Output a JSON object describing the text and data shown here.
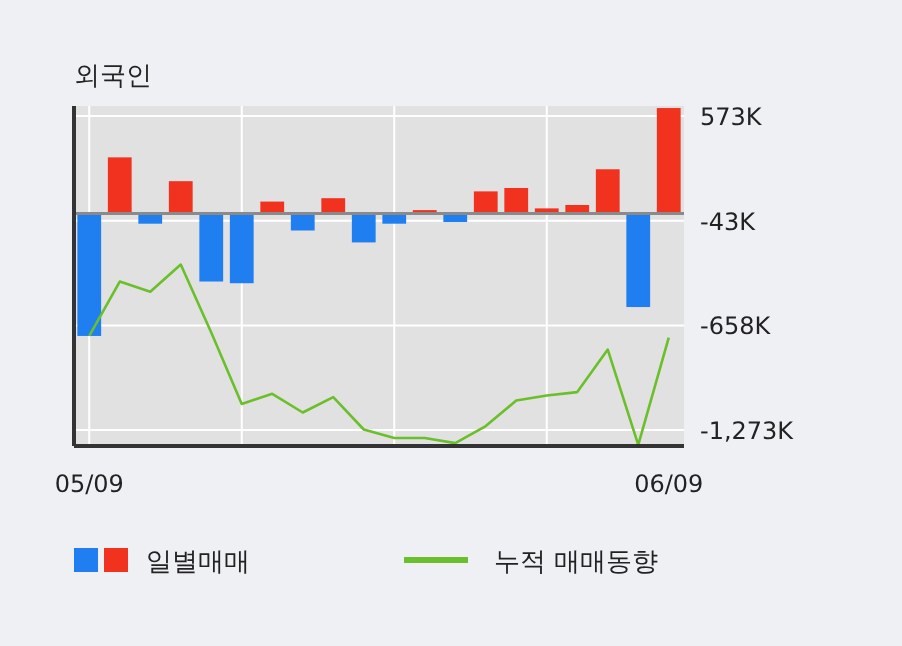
{
  "chart_data": {
    "type": "bar",
    "title": "외국인",
    "categories": [
      "05/09",
      null,
      null,
      null,
      null,
      null,
      null,
      null,
      null,
      null,
      null,
      null,
      null,
      null,
      null,
      null,
      null,
      null,
      null,
      "06/09"
    ],
    "series": [
      {
        "name": "일별매매",
        "colors": [
          "#1f7ff0",
          "#f0321e",
          "#1f7ff0",
          "#f0321e",
          "#1f7ff0",
          "#1f7ff0",
          "#f0321e",
          "#1f7ff0",
          "#f0321e",
          "#1f7ff0",
          "#1f7ff0",
          "#f0321e",
          "#1f7ff0",
          "#f0321e",
          "#f0321e",
          "#f0321e",
          "#f0321e",
          "#f0321e",
          "#1f7ff0",
          "#f0321e"
        ],
        "values": [
          -720,
          330,
          -60,
          190,
          -400,
          -410,
          70,
          -100,
          90,
          -170,
          -60,
          20,
          -50,
          130,
          150,
          30,
          50,
          260,
          -550,
          620
        ]
      },
      {
        "name": "누적 매매동향",
        "type": "line",
        "color": "#6abf2a",
        "values": [
          -720,
          -400,
          -460,
          -300,
          -700,
          -1120,
          -1060,
          -1170,
          -1080,
          -1270,
          -1320,
          -1320,
          -1350,
          -1250,
          -1100,
          -1070,
          -1050,
          -800,
          -1360,
          -730
        ]
      }
    ],
    "ylim": [
      -1367,
      632
    ],
    "yticks": [
      {
        "value": 573,
        "label": "573K"
      },
      {
        "value": -43,
        "label": "-43K"
      },
      {
        "value": -658,
        "label": "-658K"
      },
      {
        "value": -1273,
        "label": "-1,273K"
      }
    ],
    "grid": true,
    "legend": "bottom"
  }
}
